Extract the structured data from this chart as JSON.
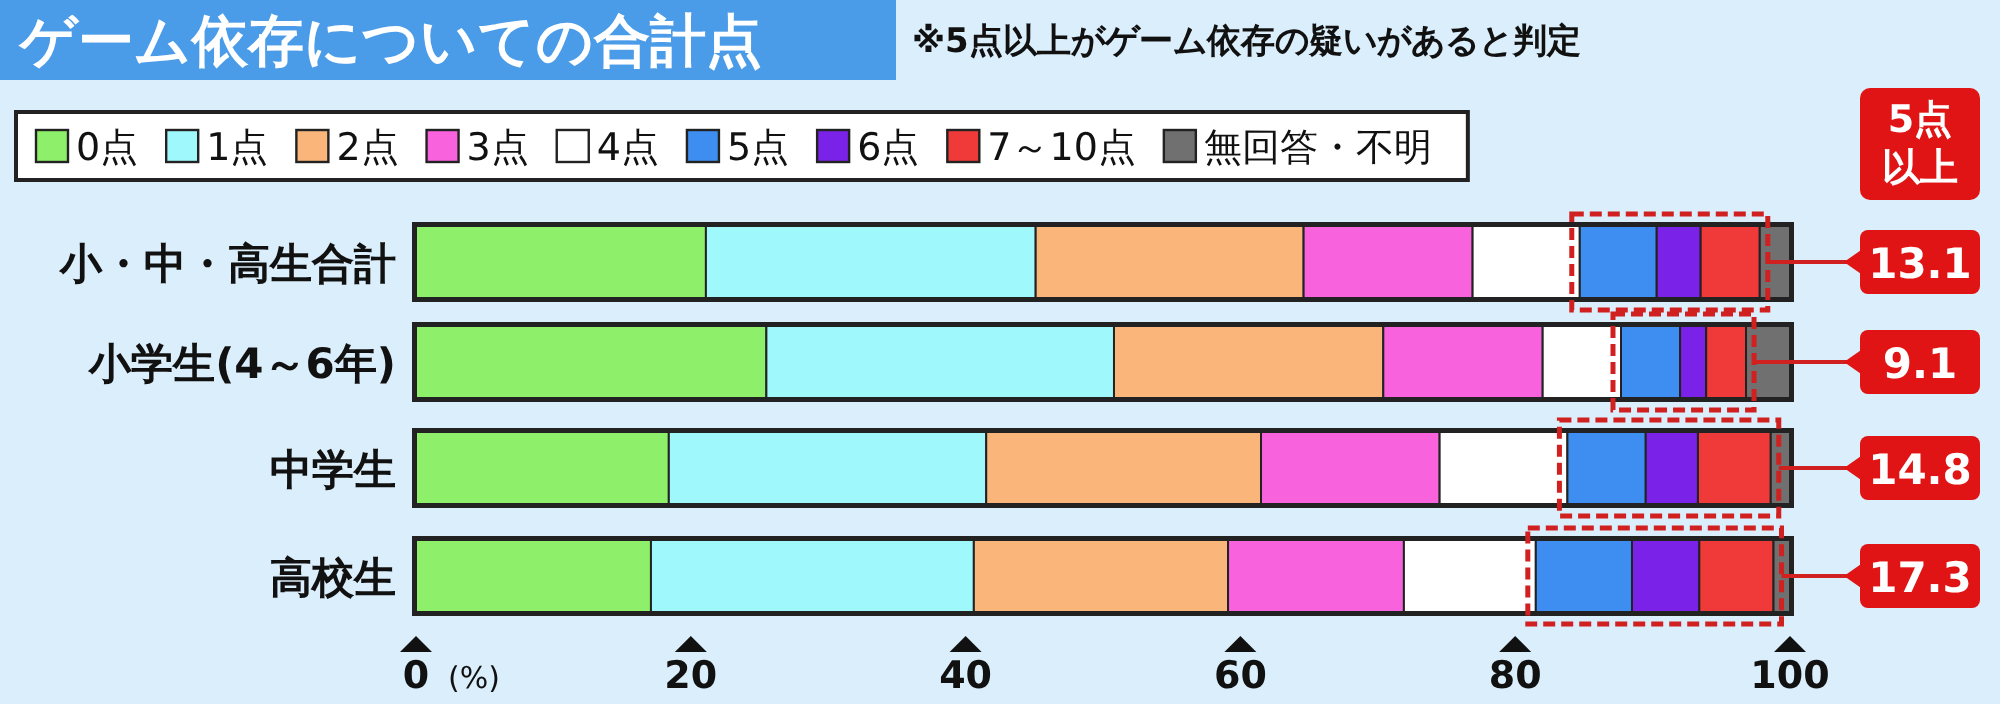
{
  "chart_data": {
    "type": "bar",
    "orientation": "horizontal",
    "stacked": true,
    "title": "ゲーム依存についての合計点",
    "subtitle": "※5点以上がゲーム依存の疑いがあると判定",
    "xlabel": "(%)",
    "categories": [
      "小・中・高生合計",
      "小学生(4～6年)",
      "中学生",
      "高校生"
    ],
    "series": [
      {
        "name": "0点",
        "color": "#8ef06a",
        "values": [
          21.1,
          25.5,
          18.4,
          17.1
        ]
      },
      {
        "name": "1点",
        "color": "#9ff8fb",
        "values": [
          24.0,
          25.3,
          23.1,
          23.5
        ]
      },
      {
        "name": "2点",
        "color": "#f9b57a",
        "values": [
          19.5,
          19.6,
          20.0,
          18.5
        ]
      },
      {
        "name": "3点",
        "color": "#f862dc",
        "values": [
          12.3,
          11.6,
          13.0,
          12.8
        ]
      },
      {
        "name": "4点",
        "color": "#ffffff",
        "values": [
          7.8,
          5.7,
          9.3,
          9.6
        ]
      },
      {
        "name": "5点",
        "color": "#3d8ef0",
        "values": [
          5.6,
          4.3,
          5.7,
          7.0
        ]
      },
      {
        "name": "6点",
        "color": "#7a22e8",
        "values": [
          3.2,
          1.9,
          3.8,
          4.9
        ]
      },
      {
        "name": "7～10点",
        "color": "#f03a3a",
        "values": [
          4.3,
          2.9,
          5.3,
          5.4
        ]
      },
      {
        "name": "無回答・不明",
        "color": "#707070",
        "values": [
          2.2,
          3.2,
          1.4,
          1.2
        ]
      }
    ],
    "xlim": [
      0,
      100
    ],
    "xticks": [
      0,
      20,
      40,
      60,
      80,
      100
    ],
    "legend": "top",
    "annotations": [
      "5点以上",
      "13.1",
      "9.1",
      "14.8",
      "17.3"
    ]
  }
}
